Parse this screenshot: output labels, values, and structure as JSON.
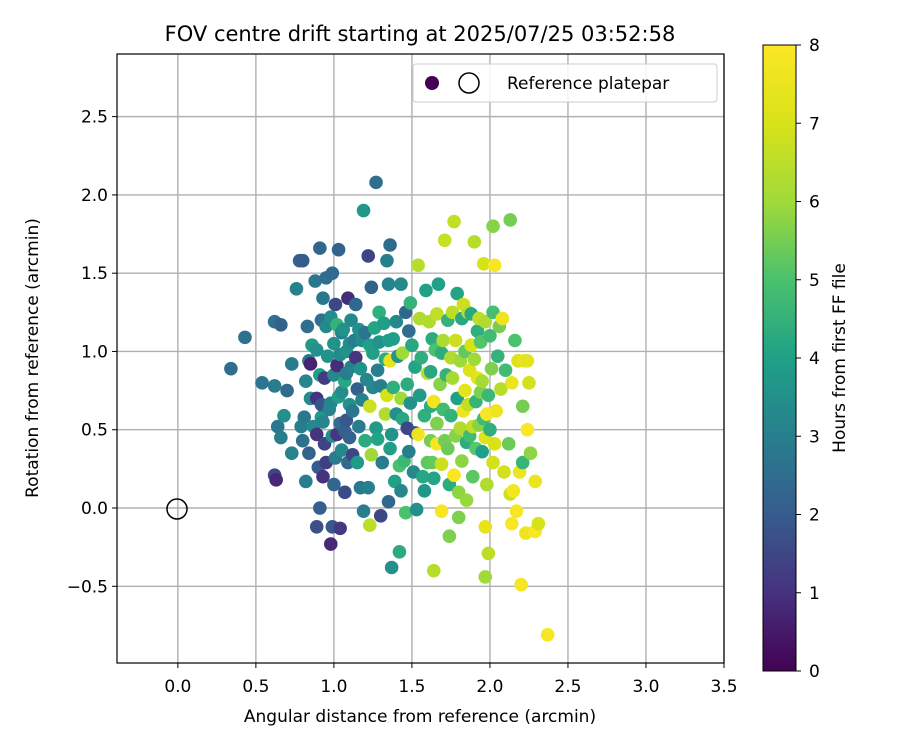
{
  "chart_data": {
    "type": "scatter",
    "title": "FOV centre drift starting at 2025/07/25 03:52:58",
    "xlabel": "Angular distance from reference (arcmin)",
    "ylabel": "Rotation from reference (arcmin)",
    "xlim": [
      -0.39,
      3.5
    ],
    "ylim": [
      -0.99,
      2.9
    ],
    "xticks": [
      0.0,
      0.5,
      1.0,
      1.5,
      2.0,
      2.5,
      3.0,
      3.5
    ],
    "yticks": [
      -0.5,
      0.0,
      0.5,
      1.0,
      1.5,
      2.0,
      2.5
    ],
    "xtick_labels": [
      "0.0",
      "0.5",
      "1.0",
      "1.5",
      "2.0",
      "2.5",
      "3.0",
      "3.5"
    ],
    "ytick_labels": [
      "−0.5",
      "0.0",
      "0.5",
      "1.0",
      "1.5",
      "2.0",
      "2.5"
    ],
    "grid": true,
    "legend": {
      "placement": "top-right",
      "entry": "Reference platepar"
    },
    "reference_point": {
      "x": 0.0,
      "y": 0.0
    },
    "colorbar": {
      "label": "Hours from first FF file",
      "range": [
        0,
        8
      ],
      "ticks": [
        0,
        1,
        2,
        3,
        4,
        5,
        6,
        7,
        8
      ],
      "tick_labels": [
        "0",
        "1",
        "2",
        "3",
        "4",
        "5",
        "6",
        "7",
        "8"
      ],
      "colormap": "viridis"
    },
    "points": [
      [
        0.34,
        0.89,
        2.5
      ],
      [
        0.43,
        1.09,
        2.6
      ],
      [
        0.54,
        0.8,
        2.7
      ],
      [
        0.62,
        1.19,
        2.6
      ],
      [
        0.62,
        0.21,
        1.5
      ],
      [
        0.63,
        0.18,
        0.8
      ],
      [
        0.62,
        0.78,
        2.9
      ],
      [
        0.64,
        0.52,
        2.8
      ],
      [
        0.66,
        0.45,
        3.0
      ],
      [
        0.66,
        1.17,
        2.2
      ],
      [
        0.68,
        0.59,
        3.5
      ],
      [
        0.7,
        0.75,
        2.4
      ],
      [
        0.73,
        0.35,
        3.1
      ],
      [
        0.73,
        0.92,
        2.9
      ],
      [
        0.76,
        1.4,
        3.1
      ],
      [
        0.78,
        1.58,
        2.2
      ],
      [
        0.79,
        0.52,
        3.0
      ],
      [
        0.8,
        1.58,
        2.0
      ],
      [
        0.8,
        0.43,
        2.6
      ],
      [
        0.81,
        0.58,
        2.8
      ],
      [
        0.82,
        0.17,
        3.0
      ],
      [
        0.82,
        0.81,
        3.2
      ],
      [
        0.83,
        1.16,
        2.5
      ],
      [
        0.84,
        0.94,
        2.8
      ],
      [
        0.84,
        0.35,
        2.2
      ],
      [
        0.85,
        0.92,
        0.7
      ],
      [
        0.85,
        0.7,
        3.4
      ],
      [
        0.86,
        1.04,
        3.8
      ],
      [
        0.87,
        0.52,
        3.3
      ],
      [
        0.88,
        1.45,
        2.8
      ],
      [
        0.89,
        1.01,
        3.5
      ],
      [
        0.89,
        -0.12,
        1.7
      ],
      [
        0.89,
        0.47,
        1.0
      ],
      [
        0.89,
        0.7,
        1.0
      ],
      [
        0.9,
        0.26,
        2.0
      ],
      [
        0.91,
        0.85,
        3.9
      ],
      [
        0.91,
        1.66,
        2.3
      ],
      [
        0.91,
        -0.0,
        2.1
      ],
      [
        0.92,
        0.58,
        3.8
      ],
      [
        0.92,
        1.2,
        2.6
      ],
      [
        0.92,
        0.66,
        1.8
      ],
      [
        0.93,
        1.34,
        2.8
      ],
      [
        0.93,
        0.2,
        1.0
      ],
      [
        0.93,
        0.55,
        3.2
      ],
      [
        0.94,
        0.83,
        1.2
      ],
      [
        0.94,
        0.41,
        1.4
      ],
      [
        0.95,
        1.16,
        3.3
      ],
      [
        0.95,
        1.47,
        2.5
      ],
      [
        0.95,
        0.29,
        1.3
      ],
      [
        0.96,
        0.97,
        3.6
      ],
      [
        0.97,
        0.63,
        3.1
      ],
      [
        0.98,
        1.22,
        3.4
      ],
      [
        0.98,
        -0.23,
        0.8
      ],
      [
        0.98,
        0.67,
        3.2
      ],
      [
        0.99,
        0.46,
        3.5
      ],
      [
        0.99,
        -0.12,
        1.9
      ],
      [
        0.99,
        1.5,
        2.4
      ],
      [
        1.0,
        1.05,
        3.6
      ],
      [
        1.0,
        0.85,
        3.3
      ],
      [
        1.0,
        0.15,
        2.3
      ],
      [
        1.01,
        0.32,
        2.9
      ],
      [
        1.01,
        1.3,
        1.5
      ],
      [
        1.02,
        0.47,
        1.1
      ],
      [
        1.02,
        0.91,
        0.9
      ],
      [
        1.02,
        1.17,
        4.5
      ],
      [
        1.03,
        1.65,
        2.2
      ],
      [
        1.03,
        0.71,
        3.9
      ],
      [
        1.04,
        -0.13,
        1.2
      ],
      [
        1.04,
        0.54,
        2.5
      ],
      [
        1.04,
        0.98,
        3.3
      ],
      [
        1.05,
        1.12,
        3.1
      ],
      [
        1.05,
        0.37,
        3.3
      ],
      [
        1.05,
        0.74,
        3.4
      ],
      [
        1.06,
        1.14,
        3.6
      ],
      [
        1.07,
        0.81,
        4.2
      ],
      [
        1.07,
        0.1,
        1.6
      ],
      [
        1.07,
        0.49,
        2.1
      ],
      [
        1.08,
        0.86,
        2.9
      ],
      [
        1.08,
        1.0,
        3.6
      ],
      [
        1.08,
        0.56,
        1.9
      ],
      [
        1.09,
        1.34,
        0.9
      ],
      [
        1.09,
        0.29,
        2.4
      ],
      [
        1.1,
        0.66,
        3.6
      ],
      [
        1.1,
        1.05,
        3.4
      ],
      [
        1.1,
        0.45,
        2.2
      ],
      [
        1.11,
        0.9,
        3.1
      ],
      [
        1.11,
        1.2,
        3.3
      ],
      [
        1.12,
        0.34,
        1.5
      ],
      [
        1.12,
        0.62,
        2.8
      ],
      [
        1.13,
        1.07,
        3.0
      ],
      [
        1.14,
        0.96,
        1.1
      ],
      [
        1.14,
        1.3,
        2.3
      ],
      [
        1.15,
        0.29,
        3.8
      ],
      [
        1.15,
        0.76,
        2.1
      ],
      [
        1.16,
        0.52,
        2.9
      ],
      [
        1.16,
        1.14,
        3.5
      ],
      [
        1.17,
        0.13,
        2.8
      ],
      [
        1.17,
        0.89,
        3.6
      ],
      [
        1.18,
        1.07,
        3.4
      ],
      [
        1.18,
        0.69,
        3.1
      ],
      [
        1.19,
        -0.02,
        3.0
      ],
      [
        1.19,
        1.9,
        3.7
      ],
      [
        1.2,
        0.43,
        4.3
      ],
      [
        1.2,
        1.12,
        2.7
      ],
      [
        1.21,
        0.82,
        3.2
      ],
      [
        1.22,
        1.61,
        1.4
      ],
      [
        1.22,
        0.13,
        3.0
      ],
      [
        1.23,
        1.04,
        4.0
      ],
      [
        1.23,
        0.65,
        6.8
      ],
      [
        1.23,
        -0.11,
        6.5
      ],
      [
        1.24,
        1.41,
        2.2
      ],
      [
        1.24,
        0.34,
        6.0
      ],
      [
        1.25,
        0.77,
        3.3
      ],
      [
        1.25,
        0.99,
        3.9
      ],
      [
        1.26,
        1.15,
        4.1
      ],
      [
        1.27,
        2.08,
        2.5
      ],
      [
        1.27,
        0.51,
        3.8
      ],
      [
        1.28,
        0.44,
        4.1
      ],
      [
        1.28,
        0.88,
        3.0
      ],
      [
        1.29,
        1.25,
        4.4
      ],
      [
        1.29,
        1.06,
        3.6
      ],
      [
        1.3,
        -0.05,
        1.5
      ],
      [
        1.3,
        0.78,
        3.0
      ],
      [
        1.31,
        0.29,
        2.9
      ],
      [
        1.32,
        1.18,
        3.9
      ],
      [
        1.33,
        0.95,
        4.3
      ],
      [
        1.33,
        0.6,
        6.3
      ],
      [
        1.34,
        1.58,
        3.0
      ],
      [
        1.34,
        0.72,
        7.0
      ],
      [
        1.35,
        1.07,
        3.9
      ],
      [
        1.35,
        0.04,
        2.3
      ],
      [
        1.35,
        1.43,
        3.1
      ],
      [
        1.36,
        0.94,
        7.4
      ],
      [
        1.36,
        0.38,
        3.9
      ],
      [
        1.36,
        1.68,
        2.4
      ],
      [
        1.37,
        0.47,
        3.6
      ],
      [
        1.37,
        -0.38,
        3.5
      ],
      [
        1.38,
        0.77,
        4.4
      ],
      [
        1.38,
        1.08,
        3.9
      ],
      [
        1.39,
        0.17,
        4.0
      ],
      [
        1.4,
        0.6,
        3.5
      ],
      [
        1.4,
        1.19,
        3.3
      ],
      [
        1.41,
        0.97,
        3.6
      ],
      [
        1.42,
        -0.28,
        4.3
      ],
      [
        1.42,
        0.27,
        5.0
      ],
      [
        1.43,
        1.43,
        3.3
      ],
      [
        1.43,
        0.7,
        6.0
      ],
      [
        1.43,
        0.11,
        3.3
      ],
      [
        1.44,
        0.99,
        6.0
      ],
      [
        1.44,
        0.57,
        4.2
      ],
      [
        1.45,
        0.3,
        4.7
      ],
      [
        1.46,
        1.25,
        2.3
      ],
      [
        1.46,
        -0.03,
        5.0
      ],
      [
        1.47,
        0.79,
        4.3
      ],
      [
        1.47,
        0.51,
        1.5
      ],
      [
        1.48,
        1.13,
        2.5
      ],
      [
        1.48,
        0.36,
        3.0
      ],
      [
        1.49,
        1.31,
        4.5
      ],
      [
        1.49,
        0.67,
        3.6
      ],
      [
        1.5,
        1.04,
        4.2
      ],
      [
        1.51,
        0.23,
        3.3
      ],
      [
        1.52,
        0.48,
        1.6
      ],
      [
        1.52,
        0.9,
        4.1
      ],
      [
        1.53,
        -0.01,
        3.5
      ],
      [
        1.54,
        0.47,
        7.6
      ],
      [
        1.54,
        1.55,
        6.4
      ],
      [
        1.55,
        0.72,
        3.8
      ],
      [
        1.55,
        1.21,
        6.3
      ],
      [
        1.56,
        0.96,
        4.4
      ],
      [
        1.57,
        0.2,
        4.2
      ],
      [
        1.58,
        0.59,
        4.4
      ],
      [
        1.58,
        0.11,
        3.7
      ],
      [
        1.59,
        1.39,
        4.0
      ],
      [
        1.6,
        0.86,
        6.5
      ],
      [
        1.6,
        0.29,
        5.2
      ],
      [
        1.61,
        1.19,
        6.3
      ],
      [
        1.62,
        0.65,
        4.3
      ],
      [
        1.62,
        0.43,
        5.5
      ],
      [
        1.62,
        0.87,
        4.2
      ],
      [
        1.63,
        0.29,
        5.3
      ],
      [
        1.63,
        1.08,
        4.3
      ],
      [
        1.64,
        -0.4,
        6.4
      ],
      [
        1.64,
        0.68,
        7.7
      ],
      [
        1.64,
        0.19,
        4.1
      ],
      [
        1.65,
        1.01,
        5.0
      ],
      [
        1.66,
        0.54,
        5.6
      ],
      [
        1.66,
        0.41,
        7.8
      ],
      [
        1.66,
        1.24,
        6.6
      ],
      [
        1.67,
        1.43,
        4.0
      ],
      [
        1.68,
        0.79,
        5.7
      ],
      [
        1.69,
        0.99,
        4.3
      ],
      [
        1.69,
        0.28,
        6.8
      ],
      [
        1.69,
        -0.02,
        7.8
      ],
      [
        1.7,
        0.63,
        4.8
      ],
      [
        1.7,
        1.07,
        6.2
      ],
      [
        1.71,
        1.71,
        6.7
      ],
      [
        1.71,
        0.43,
        5.5
      ],
      [
        1.72,
        0.85,
        4.5
      ],
      [
        1.73,
        1.2,
        4.5
      ],
      [
        1.73,
        0.38,
        5.4
      ],
      [
        1.74,
        0.15,
        4.3
      ],
      [
        1.74,
        -0.18,
        5.6
      ],
      [
        1.75,
        0.96,
        6.3
      ],
      [
        1.75,
        0.59,
        4.5
      ],
      [
        1.76,
        1.25,
        6.5
      ],
      [
        1.76,
        0.83,
        6.1
      ],
      [
        1.77,
        0.21,
        7.9
      ],
      [
        1.77,
        1.83,
        6.6
      ],
      [
        1.78,
        0.46,
        5.7
      ],
      [
        1.78,
        1.07,
        6.8
      ],
      [
        1.79,
        1.37,
        4.1
      ],
      [
        1.79,
        0.7,
        4.0
      ],
      [
        1.8,
        0.1,
        5.8
      ],
      [
        1.8,
        -0.06,
        5.6
      ],
      [
        1.81,
        0.51,
        6.3
      ],
      [
        1.81,
        0.94,
        6.0
      ],
      [
        1.82,
        0.3,
        5.8
      ],
      [
        1.82,
        1.21,
        4.2
      ],
      [
        1.83,
        0.62,
        7.6
      ],
      [
        1.83,
        1.3,
        6.8
      ],
      [
        1.84,
        0.75,
        7.3
      ],
      [
        1.84,
        1.0,
        5.3
      ],
      [
        1.85,
        0.42,
        4.3
      ],
      [
        1.85,
        0.05,
        5.9
      ],
      [
        1.86,
        1.25,
        6.5
      ],
      [
        1.86,
        0.66,
        6.6
      ],
      [
        1.87,
        0.88,
        7.1
      ],
      [
        1.87,
        0.46,
        4.8
      ],
      [
        1.88,
        1.04,
        7.0
      ],
      [
        1.88,
        1.24,
        4.2
      ],
      [
        1.89,
        0.52,
        6.6
      ],
      [
        1.89,
        0.2,
        5.2
      ],
      [
        1.9,
        0.95,
        6.0
      ],
      [
        1.9,
        1.7,
        6.4
      ],
      [
        1.91,
        0.68,
        4.6
      ],
      [
        1.91,
        0.38,
        5.2
      ],
      [
        1.92,
        1.13,
        4.4
      ],
      [
        1.92,
        0.83,
        7.3
      ],
      [
        1.93,
        0.53,
        5.7
      ],
      [
        1.93,
        1.21,
        6.5
      ],
      [
        1.94,
        0.74,
        5.6
      ],
      [
        1.94,
        1.06,
        5.1
      ],
      [
        1.95,
        0.36,
        4.0
      ],
      [
        1.95,
        0.81,
        6.1
      ],
      [
        1.96,
        0.57,
        4.8
      ],
      [
        1.96,
        1.56,
        7.0
      ],
      [
        1.97,
        0.45,
        7.2
      ],
      [
        1.97,
        -0.12,
        7.4
      ],
      [
        1.97,
        1.19,
        6.3
      ],
      [
        1.97,
        -0.44,
        6.0
      ],
      [
        1.98,
        0.15,
        6.3
      ],
      [
        1.98,
        0.6,
        7.9
      ],
      [
        1.99,
        0.72,
        4.7
      ],
      [
        1.99,
        -0.29,
        6.5
      ],
      [
        2.0,
        1.1,
        4.8
      ],
      [
        2.0,
        0.5,
        4.4
      ],
      [
        2.01,
        0.89,
        5.6
      ],
      [
        2.02,
        1.8,
        5.7
      ],
      [
        2.02,
        0.29,
        6.9
      ],
      [
        2.02,
        1.25,
        4.9
      ],
      [
        2.03,
        0.41,
        7.0
      ],
      [
        2.03,
        1.55,
        7.8
      ],
      [
        2.04,
        0.62,
        7.6
      ],
      [
        2.05,
        0.97,
        4.5
      ],
      [
        2.06,
        1.16,
        5.5
      ],
      [
        2.07,
        0.76,
        6.4
      ],
      [
        2.08,
        1.21,
        7.6
      ],
      [
        2.09,
        0.23,
        6.9
      ],
      [
        2.1,
        0.88,
        4.8
      ],
      [
        2.12,
        0.41,
        5.4
      ],
      [
        2.13,
        1.84,
        5.5
      ],
      [
        2.13,
        0.09,
        6.8
      ],
      [
        2.14,
        0.8,
        7.5
      ],
      [
        2.14,
        -0.1,
        7.9
      ],
      [
        2.15,
        0.11,
        7.7
      ],
      [
        2.16,
        1.07,
        5.0
      ],
      [
        2.17,
        -0.02,
        7.8
      ],
      [
        2.18,
        0.94,
        7.1
      ],
      [
        2.19,
        0.23,
        7.5
      ],
      [
        2.2,
        -0.49,
        7.8
      ],
      [
        2.21,
        0.65,
        5.5
      ],
      [
        2.21,
        0.29,
        4.6
      ],
      [
        2.22,
        0.94,
        7.4
      ],
      [
        2.23,
        -0.16,
        7.6
      ],
      [
        2.24,
        0.94,
        7.3
      ],
      [
        2.24,
        0.5,
        7.9
      ],
      [
        2.25,
        0.8,
        6.9
      ],
      [
        2.26,
        0.35,
        5.8
      ],
      [
        2.29,
        -0.15,
        7.9
      ],
      [
        2.29,
        0.17,
        7.5
      ],
      [
        2.31,
        -0.1,
        7.0
      ],
      [
        2.37,
        -0.81,
        7.8
      ]
    ]
  }
}
